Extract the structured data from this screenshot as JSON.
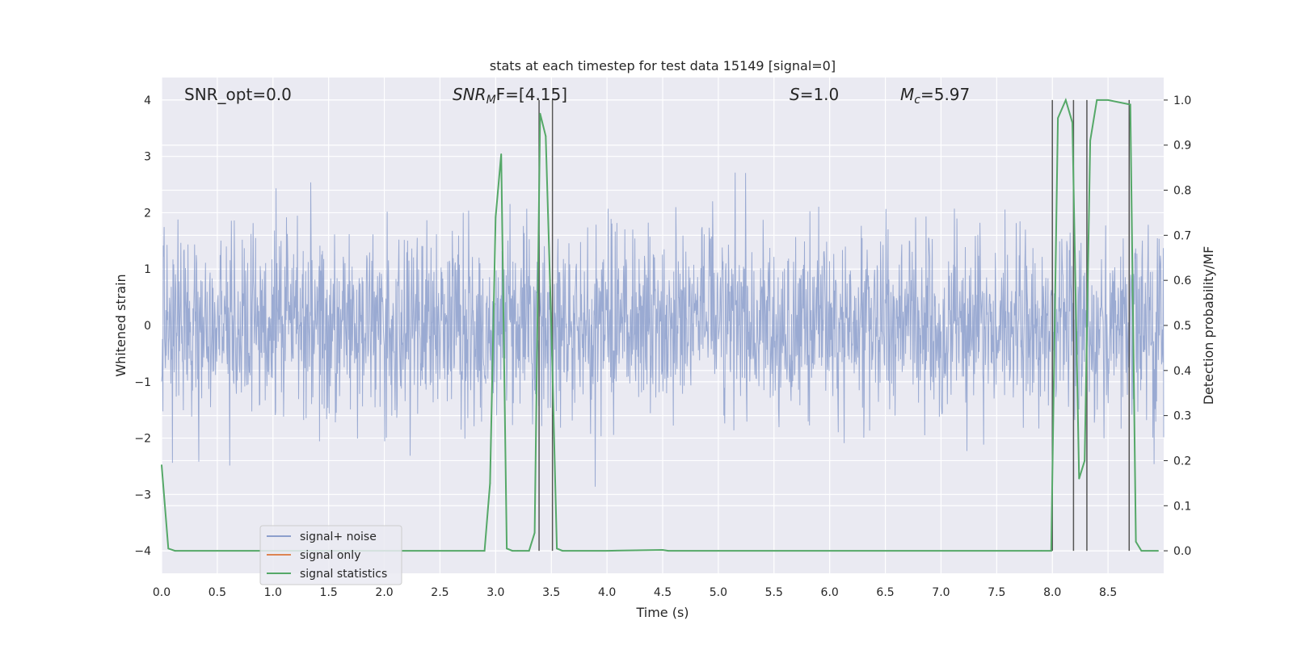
{
  "chart_data": {
    "type": "line",
    "title": "stats at each timestep for test data 15149 [signal=0]",
    "xlabel": "Time (s)",
    "ylabel_left": "Whitened strain",
    "ylabel_right": "Detection probability/MF",
    "xlim": [
      0.0,
      9.0
    ],
    "ylim_left": [
      -4.4,
      4.4
    ],
    "ylim_right": [
      -0.05,
      1.05
    ],
    "x_ticks": [
      "0.0",
      "0.5",
      "1.0",
      "1.5",
      "2.0",
      "2.5",
      "3.0",
      "3.5",
      "4.0",
      "4.5",
      "5.0",
      "5.5",
      "6.0",
      "6.5",
      "7.0",
      "7.5",
      "8.0",
      "8.5"
    ],
    "y_left_ticks": [
      "4",
      "3",
      "2",
      "1",
      "0",
      "−1",
      "−2",
      "−3",
      "−4"
    ],
    "y_right_ticks": [
      "1.0",
      "0.9",
      "0.8",
      "0.7",
      "0.6",
      "0.5",
      "0.4",
      "0.3",
      "0.2",
      "0.1",
      "0.0"
    ],
    "grid": true,
    "legend_position": "bottom-left",
    "annotations": {
      "snr_opt": "SNR_opt=0.0",
      "snr_mf_main": "SNR",
      "snr_mf_sub": "M",
      "snr_mf_rest": "F=[4.15]",
      "s_main": "S",
      "s_rest": "=1.0",
      "mc_main": "M",
      "mc_sub": "c",
      "mc_rest": "=5.97"
    },
    "series": [
      {
        "name": "signal+ noise",
        "color": "#8c9fcc",
        "noise_std": 0.8,
        "noise_max_abs": 4.0
      },
      {
        "name": "signal only",
        "color": "#dd8452",
        "values": []
      },
      {
        "name": "signal statistics",
        "color": "#55a868",
        "x": [
          0.0,
          0.06,
          0.12,
          0.5,
          1.0,
          2.0,
          2.9,
          2.95,
          3.0,
          3.05,
          3.1,
          3.15,
          3.2,
          3.3,
          3.35,
          3.4,
          3.45,
          3.5,
          3.55,
          3.6,
          4.0,
          4.5,
          4.55,
          5.0,
          7.9,
          7.99,
          8.05,
          8.12,
          8.18,
          8.24,
          8.29,
          8.34,
          8.4,
          8.5,
          8.7,
          8.75,
          8.8,
          8.95
        ],
        "y": [
          0.19,
          0.005,
          0.0,
          0.0,
          0.0,
          0.0,
          0.0,
          0.15,
          0.74,
          0.88,
          0.005,
          0.0,
          0.0,
          0.0,
          0.04,
          0.97,
          0.92,
          0.5,
          0.005,
          0.0,
          0.0,
          0.002,
          0.0,
          0.0,
          0.0,
          0.0,
          0.96,
          1.0,
          0.95,
          0.16,
          0.2,
          0.91,
          1.0,
          1.0,
          0.99,
          0.02,
          0.0,
          0.0
        ]
      }
    ],
    "vertical_lines": [
      3.39,
      3.51,
      8.0,
      8.19,
      8.31,
      8.69
    ],
    "vertical_line_color": "#555555"
  }
}
